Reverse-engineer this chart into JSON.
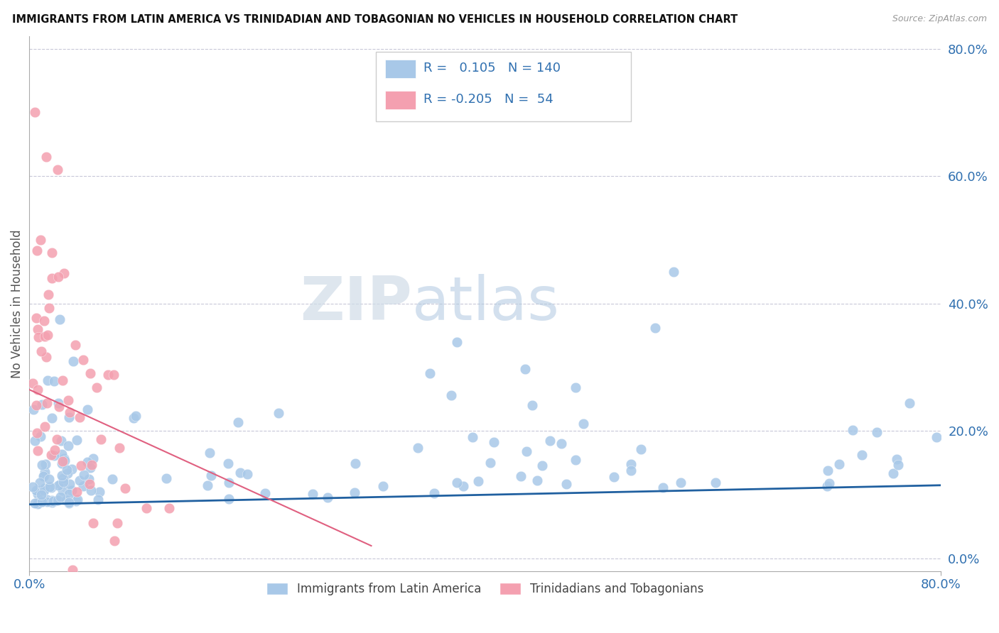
{
  "title": "IMMIGRANTS FROM LATIN AMERICA VS TRINIDADIAN AND TOBAGONIAN NO VEHICLES IN HOUSEHOLD CORRELATION CHART",
  "source": "Source: ZipAtlas.com",
  "ylabel": "No Vehicles in Household",
  "legend1_label": "Immigrants from Latin America",
  "legend2_label": "Trinidadians and Tobagonians",
  "r1": 0.105,
  "n1": 140,
  "r2": -0.205,
  "n2": 54,
  "color_blue": "#a8c8e8",
  "color_pink": "#f4a0b0",
  "color_blue_line": "#2060a0",
  "color_pink_line": "#e06080",
  "watermark_zip": "ZIP",
  "watermark_atlas": "atlas",
  "xmin": 0.0,
  "xmax": 0.8,
  "ymin": -0.02,
  "ymax": 0.82,
  "yticks": [
    0.0,
    0.2,
    0.4,
    0.6,
    0.8
  ],
  "ytick_labels": [
    "0.0%",
    "20.0%",
    "40.0%",
    "60.0%",
    "80.0%"
  ],
  "xtick_left": "0.0%",
  "xtick_right": "80.0%",
  "blue_line_x": [
    0.0,
    0.8
  ],
  "blue_line_y": [
    0.085,
    0.115
  ],
  "pink_line_x": [
    0.0,
    0.3
  ],
  "pink_line_y": [
    0.265,
    0.02
  ]
}
